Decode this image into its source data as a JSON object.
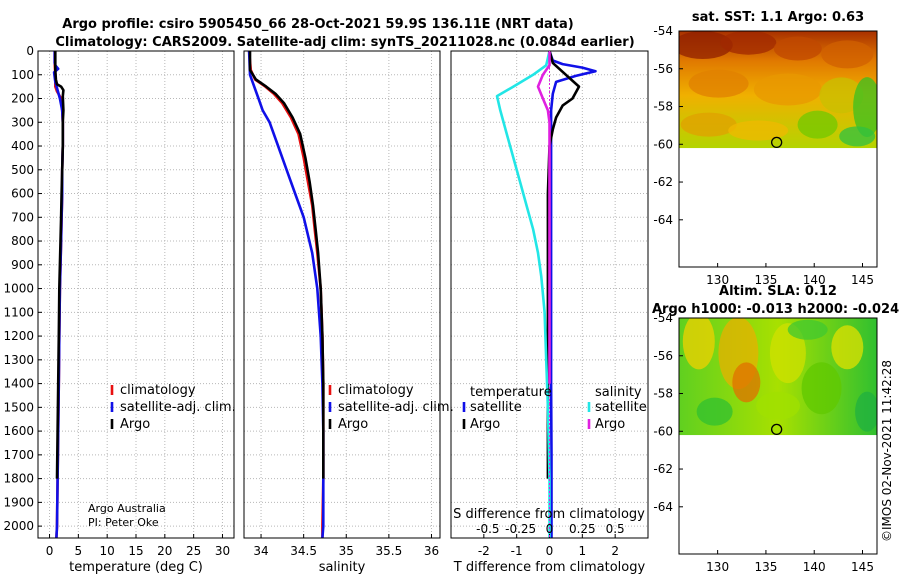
{
  "header": {
    "title_line1": "Argo profile: csiro 5905450_66 28-Oct-2021 59.9S 136.11E (NRT data)",
    "title_line2": "Climatology: CARS2009. Satellite-adj clim: synTS_20211028.nc (0.084d earlier)"
  },
  "colors": {
    "climatology": "#e81010",
    "satellite_adj": "#1010e8",
    "argo": "#000000",
    "satellite_s": "#22e6e6",
    "argo_s": "#e020e0",
    "grid": "#b8b8b8"
  },
  "chart_data": [
    {
      "type": "line",
      "id": "temperature",
      "xlabel": "temperature (deg C)",
      "ylabel": "",
      "xlim": [
        -2,
        32
      ],
      "ylim": [
        2050,
        0
      ],
      "xticks": [
        0,
        5,
        10,
        15,
        20,
        25,
        30
      ],
      "yticks": [
        0,
        100,
        200,
        300,
        400,
        500,
        600,
        700,
        800,
        900,
        1000,
        1100,
        1200,
        1300,
        1400,
        1500,
        1600,
        1700,
        1800,
        1900,
        2000
      ],
      "legend": [
        "climatology",
        "satellite-adj. clim.",
        "Argo"
      ],
      "note_lines": [
        "Argo Australia",
        "PI: Peter Oke"
      ],
      "series": [
        {
          "name": "climatology",
          "color": "#e81010",
          "x": [
            0.9,
            0.9,
            1.0,
            1.0,
            1.0,
            1.3,
            2.0,
            2.2,
            2.3,
            2.3,
            2.2,
            2.2,
            2.1,
            2.0,
            1.9,
            1.8,
            1.7,
            1.6,
            1.5,
            1.4,
            1.3,
            1.2
          ],
          "y": [
            0,
            50,
            100,
            130,
            150,
            170,
            200,
            250,
            300,
            400,
            500,
            600,
            700,
            800,
            900,
            1000,
            1200,
            1400,
            1600,
            1800,
            2000,
            2050
          ]
        },
        {
          "name": "satellite-adj. clim.",
          "color": "#1010e8",
          "x": [
            0.9,
            0.9,
            1.0,
            1.5,
            0.8,
            1.0,
            1.8,
            2.2,
            2.3,
            2.3,
            2.2,
            2.2,
            2.1,
            2.0,
            1.9,
            1.8,
            1.7,
            1.6,
            1.5,
            1.4,
            1.3,
            1.2
          ],
          "y": [
            0,
            50,
            60,
            75,
            90,
            130,
            200,
            250,
            300,
            400,
            500,
            600,
            700,
            800,
            900,
            1000,
            1200,
            1400,
            1600,
            1800,
            2000,
            2050
          ]
        },
        {
          "name": "Argo",
          "color": "#000000",
          "x": [
            1.0,
            1.0,
            1.1,
            1.3,
            2.0,
            2.4,
            2.3,
            2.4,
            2.3,
            2.3,
            2.2,
            2.1,
            2.0,
            1.9,
            1.8,
            1.7,
            1.6,
            1.5,
            1.4,
            1.3
          ],
          "y": [
            0,
            80,
            120,
            140,
            150,
            165,
            190,
            250,
            300,
            400,
            500,
            600,
            700,
            800,
            900,
            1000,
            1200,
            1400,
            1600,
            1800
          ]
        }
      ]
    },
    {
      "type": "line",
      "id": "salinity",
      "xlabel": "salinity",
      "ylabel": "",
      "xlim": [
        33.8,
        36.1
      ],
      "ylim": [
        2050,
        0
      ],
      "xticks": [
        34,
        34.5,
        35,
        35.5,
        36
      ],
      "xticklabels": [
        "34",
        "34.5",
        "35",
        "35.5",
        "36"
      ],
      "legend": [
        "climatology",
        "satellite-adj. clim.",
        "Argo"
      ],
      "series": [
        {
          "name": "climatology",
          "color": "#e81010",
          "x": [
            33.86,
            33.88,
            33.93,
            34.05,
            34.15,
            34.25,
            34.35,
            34.44,
            34.5,
            34.55,
            34.6,
            34.63,
            34.66,
            34.7,
            34.72,
            34.73,
            34.73,
            34.73,
            34.72,
            34.72
          ],
          "y": [
            0,
            80,
            120,
            150,
            180,
            220,
            280,
            350,
            450,
            550,
            650,
            750,
            850,
            1000,
            1200,
            1400,
            1600,
            1800,
            2000,
            2050
          ]
        },
        {
          "name": "satellite-adj. clim.",
          "color": "#1010e8",
          "x": [
            33.86,
            33.87,
            33.92,
            33.97,
            34.02,
            34.1,
            34.2,
            34.3,
            34.4,
            34.5,
            34.6,
            34.66,
            34.7,
            34.72,
            34.73,
            34.73,
            34.73,
            34.72,
            34.72
          ],
          "y": [
            0,
            100,
            150,
            200,
            250,
            300,
            400,
            500,
            600,
            700,
            850,
            1000,
            1200,
            1400,
            1600,
            1800,
            2000,
            2050,
            2050
          ]
        },
        {
          "name": "Argo",
          "color": "#000000",
          "x": [
            33.87,
            33.87,
            33.94,
            34.06,
            34.17,
            34.27,
            34.37,
            34.46,
            34.52,
            34.57,
            34.61,
            34.64,
            34.67,
            34.7,
            34.72,
            34.73,
            34.73,
            34.73
          ],
          "y": [
            0,
            80,
            120,
            150,
            180,
            220,
            280,
            350,
            450,
            550,
            650,
            750,
            850,
            1000,
            1200,
            1400,
            1600,
            1800
          ]
        }
      ]
    },
    {
      "type": "line",
      "id": "difference",
      "xlabel": "T difference from climatology",
      "xlabel_top": "S difference from climatology",
      "xlim": [
        -3,
        3
      ],
      "ylim": [
        2050,
        0
      ],
      "xticks": [
        -2,
        -1,
        0,
        1,
        2
      ],
      "xticklabels": [
        "-2",
        "-1",
        "0",
        "1",
        "2"
      ],
      "top_ticklabels": [
        "-0.5",
        "-0.25",
        "0",
        "0.25",
        "0.5"
      ],
      "legend_left_title": "temperature",
      "legend_right_title": "salinity",
      "legend_left": [
        "satellite",
        "Argo"
      ],
      "legend_right": [
        "satellite",
        "Argo"
      ],
      "series": [
        {
          "name": "T satellite",
          "color": "#1010e8",
          "x": [
            0.0,
            0.1,
            0.4,
            1.0,
            1.4,
            0.8,
            0.2,
            0.1,
            0.05,
            0.05,
            0.05,
            0.05,
            0.05,
            0.05,
            0.05,
            0.06,
            0.06,
            0.06
          ],
          "y": [
            0,
            40,
            55,
            70,
            85,
            105,
            130,
            180,
            250,
            400,
            600,
            800,
            1000,
            1200,
            1400,
            1700,
            2000,
            2050
          ]
        },
        {
          "name": "T Argo",
          "color": "#000000",
          "x": [
            0.0,
            0.1,
            0.5,
            0.9,
            0.7,
            0.4,
            0.2,
            0.1,
            0.0,
            -0.05,
            -0.05,
            -0.05,
            -0.05,
            -0.05,
            -0.05,
            -0.05
          ],
          "y": [
            0,
            50,
            100,
            150,
            200,
            230,
            280,
            330,
            400,
            600,
            800,
            1000,
            1200,
            1400,
            1600,
            1800
          ]
        },
        {
          "name": "S satellite",
          "color": "#22e6e6",
          "x": [
            0.0,
            -0.1,
            -0.5,
            -1.1,
            -1.6,
            -1.5,
            -1.3,
            -1.1,
            -0.9,
            -0.7,
            -0.5,
            -0.35,
            -0.25,
            -0.15,
            -0.1,
            -0.05,
            0.0,
            0.0
          ],
          "y": [
            0,
            60,
            100,
            150,
            190,
            250,
            350,
            450,
            550,
            650,
            750,
            850,
            950,
            1100,
            1300,
            1500,
            1800,
            2050
          ]
        },
        {
          "name": "S Argo",
          "color": "#e020e0",
          "x": [
            0.0,
            0.0,
            -0.2,
            -0.35,
            -0.2,
            -0.05,
            0.0,
            0.0,
            0.0,
            0.0,
            0.0
          ],
          "y": [
            0,
            60,
            100,
            150,
            200,
            250,
            300,
            500,
            800,
            1100,
            1400
          ]
        }
      ]
    },
    {
      "type": "heatmap",
      "id": "sst_map",
      "title": "sat. SST: 1.1 Argo: 0.63",
      "xlim": [
        126,
        146.5
      ],
      "ylim": [
        -66.5,
        -54
      ],
      "xticks": [
        130,
        135,
        140,
        145
      ],
      "yticks": [
        -54,
        -56,
        -58,
        -60,
        -62,
        -64
      ],
      "data_extent_lat": [
        -60.2,
        -54
      ],
      "marker": {
        "lon": 136.11,
        "lat": -59.9
      }
    },
    {
      "type": "heatmap",
      "id": "sla_map",
      "title_line1": "Altim. SLA: 0.12",
      "title_line2": "Argo h1000: -0.013 h2000: -0.024",
      "xlim": [
        126,
        146.5
      ],
      "ylim": [
        -66.5,
        -54
      ],
      "xticks": [
        130,
        135,
        140,
        145
      ],
      "yticks": [
        -54,
        -56,
        -58,
        -60,
        -62,
        -64
      ],
      "data_extent_lat": [
        -60.2,
        -54
      ],
      "marker": {
        "lon": 136.11,
        "lat": -59.9
      }
    }
  ],
  "footer": {
    "stamp": "©IMOS 02-Nov-2021 11:42:28"
  }
}
